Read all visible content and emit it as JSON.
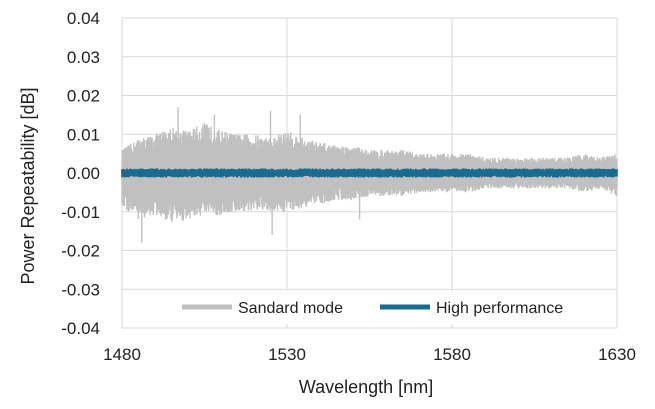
{
  "chart_data": {
    "type": "line",
    "title": "",
    "xlabel": "Wavelength [nm]",
    "ylabel": "Power Repeatability [dB]",
    "xlim": [
      1480,
      1630
    ],
    "ylim": [
      -0.04,
      0.04
    ],
    "x_ticks": [
      "1480",
      "1530",
      "1580",
      "1630"
    ],
    "y_ticks": [
      "0.04",
      "0.03",
      "0.02",
      "0.01",
      "0.00",
      "-0.01",
      "-0.02",
      "-0.03",
      "-0.04"
    ],
    "grid": true,
    "legend_position": "bottom-right",
    "series": [
      {
        "name": "Sandard mode",
        "color": "#c0c0c0",
        "x": [
          1480,
          1485,
          1490,
          1495,
          1500,
          1505,
          1510,
          1515,
          1520,
          1525,
          1530,
          1535,
          1540,
          1545,
          1550,
          1555,
          1560,
          1565,
          1570,
          1575,
          1580,
          1585,
          1590,
          1595,
          1600,
          1605,
          1610,
          1615,
          1620,
          1625,
          1630
        ],
        "upper": [
          0.006,
          0.009,
          0.01,
          0.012,
          0.011,
          0.013,
          0.011,
          0.01,
          0.01,
          0.009,
          0.011,
          0.009,
          0.008,
          0.007,
          0.007,
          0.006,
          0.006,
          0.006,
          0.005,
          0.005,
          0.005,
          0.005,
          0.004,
          0.004,
          0.004,
          0.004,
          0.004,
          0.004,
          0.005,
          0.004,
          0.005
        ],
        "lower": [
          -0.009,
          -0.012,
          -0.011,
          -0.013,
          -0.012,
          -0.011,
          -0.011,
          -0.01,
          -0.01,
          -0.01,
          -0.01,
          -0.009,
          -0.008,
          -0.007,
          -0.007,
          -0.006,
          -0.006,
          -0.006,
          -0.005,
          -0.005,
          -0.005,
          -0.005,
          -0.004,
          -0.004,
          -0.004,
          -0.004,
          -0.004,
          -0.004,
          -0.005,
          -0.004,
          -0.006
        ],
        "peaks": [
          {
            "x": 1486,
            "y": -0.018
          },
          {
            "x": 1497,
            "y": 0.017
          },
          {
            "x": 1508,
            "y": 0.015
          },
          {
            "x": 1525,
            "y": 0.016
          },
          {
            "x": 1525.5,
            "y": -0.016
          },
          {
            "x": 1534,
            "y": 0.015
          },
          {
            "x": 1552,
            "y": -0.012
          }
        ]
      },
      {
        "name": "High performance",
        "color": "#1c6a8e",
        "x": [
          1480,
          1630
        ],
        "upper": [
          0.0012,
          0.0012
        ],
        "lower": [
          -0.0012,
          -0.0012
        ]
      }
    ]
  }
}
